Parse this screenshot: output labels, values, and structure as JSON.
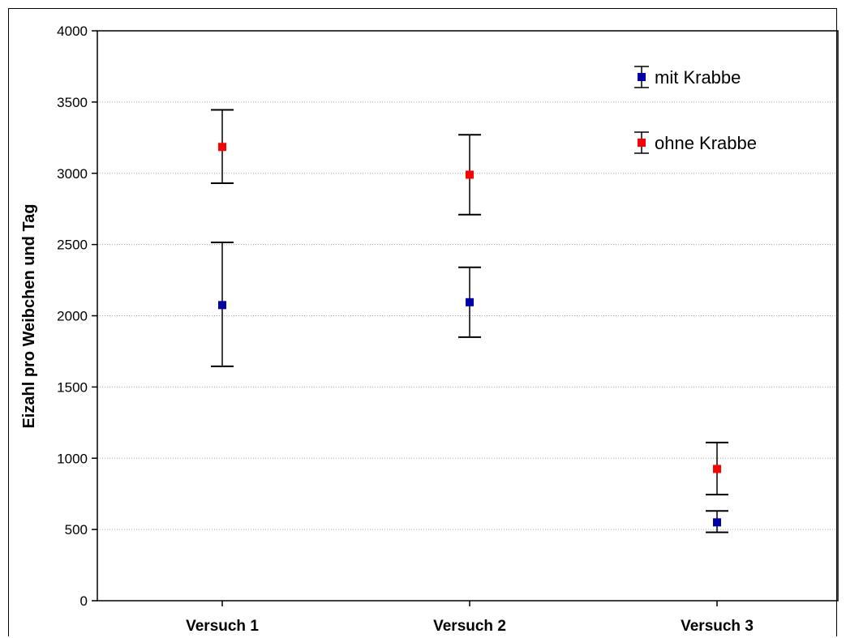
{
  "chart_data": {
    "type": "scatter",
    "ylabel": "Eizahl pro Weibchen und Tag",
    "ylim": [
      0,
      4000
    ],
    "yticks": [
      0,
      500,
      1000,
      1500,
      2000,
      2500,
      3000,
      3500,
      4000
    ],
    "categories": [
      "Versuch 1",
      "Versuch 2",
      "Versuch 3"
    ],
    "grid": "horizontal dotted",
    "legend_position": "top-right",
    "series": [
      {
        "name": "mit Krabbe",
        "color": "#0000a8",
        "marker": "square",
        "values": [
          2075,
          2095,
          550
        ],
        "error_low": [
          1645,
          1850,
          480
        ],
        "error_high": [
          2515,
          2340,
          630
        ]
      },
      {
        "name": "ohne Krabbe",
        "color": "#ff0000",
        "marker": "square",
        "values": [
          3185,
          2990,
          925
        ],
        "error_low": [
          2930,
          2710,
          745
        ],
        "error_high": [
          3445,
          3270,
          1110
        ]
      }
    ]
  }
}
